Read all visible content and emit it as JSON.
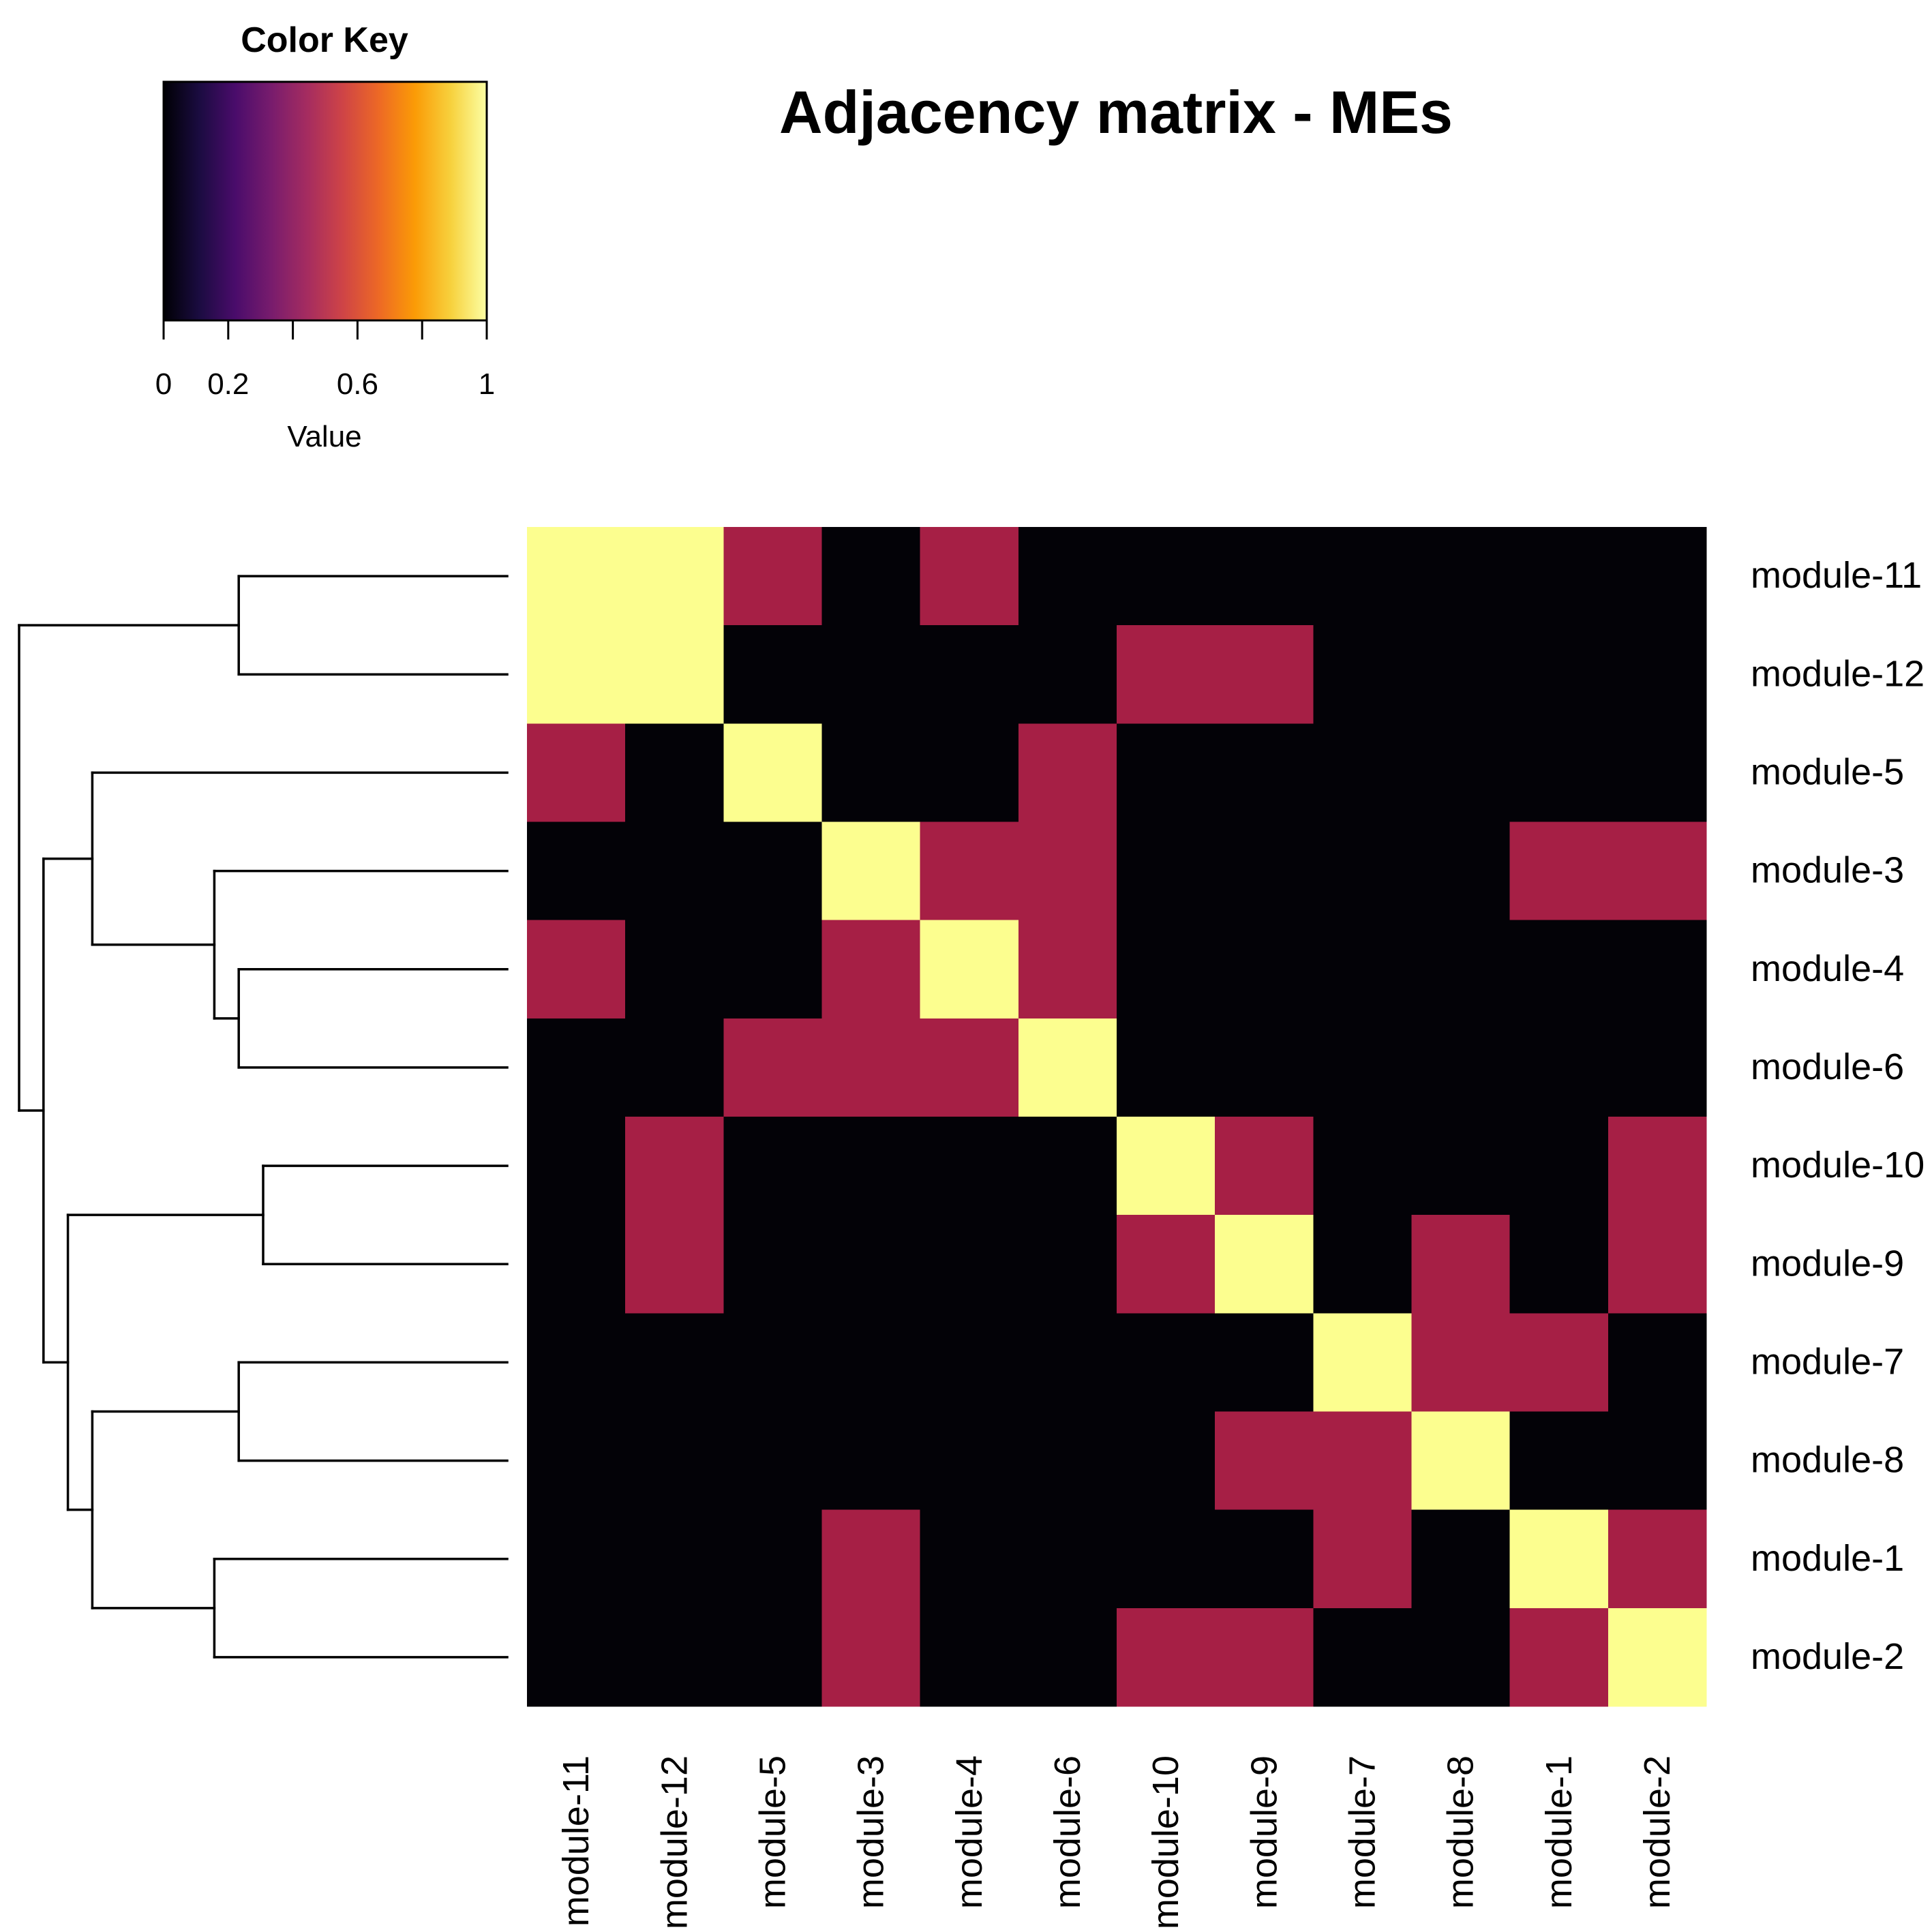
{
  "chart_data": {
    "type": "heatmap",
    "title": "Adjacency matrix - MEs",
    "row_labels": [
      "module-11",
      "module-12",
      "module-5",
      "module-3",
      "module-4",
      "module-6",
      "module-10",
      "module-9",
      "module-7",
      "module-8",
      "module-1",
      "module-2"
    ],
    "col_labels": [
      "module-11",
      "module-12",
      "module-5",
      "module-3",
      "module-4",
      "module-6",
      "module-10",
      "module-9",
      "module-7",
      "module-8",
      "module-1",
      "module-2"
    ],
    "values": [
      [
        1,
        1,
        0.5,
        0,
        0.5,
        0,
        0,
        0,
        0,
        0,
        0,
        0
      ],
      [
        1,
        1,
        0,
        0,
        0,
        0,
        0.5,
        0.5,
        0,
        0,
        0,
        0
      ],
      [
        0.5,
        0,
        1,
        0,
        0,
        0.5,
        0,
        0,
        0,
        0,
        0,
        0
      ],
      [
        0,
        0,
        0,
        1,
        0.5,
        0.5,
        0,
        0,
        0,
        0,
        0.5,
        0.5
      ],
      [
        0.5,
        0,
        0,
        0.5,
        1,
        0.5,
        0,
        0,
        0,
        0,
        0,
        0
      ],
      [
        0,
        0,
        0.5,
        0.5,
        0.5,
        1,
        0,
        0,
        0,
        0,
        0,
        0
      ],
      [
        0,
        0.5,
        0,
        0,
        0,
        0,
        1,
        0.5,
        0,
        0,
        0,
        0.5
      ],
      [
        0,
        0.5,
        0,
        0,
        0,
        0,
        0.5,
        1,
        0,
        0.5,
        0,
        0.5
      ],
      [
        0,
        0,
        0,
        0,
        0,
        0,
        0,
        0,
        1,
        0.5,
        0.5,
        0
      ],
      [
        0,
        0,
        0,
        0,
        0,
        0,
        0,
        0.5,
        0.5,
        1,
        0,
        0
      ],
      [
        0,
        0,
        0,
        0.5,
        0,
        0,
        0,
        0,
        0.5,
        0,
        1,
        0.5
      ],
      [
        0,
        0,
        0,
        0.5,
        0,
        0,
        0.5,
        0.5,
        0,
        0,
        0.5,
        1
      ]
    ],
    "color_key": {
      "title": "Color Key",
      "xlabel": "Value",
      "range": [
        0,
        1
      ],
      "tick_values": [
        0,
        0.2,
        0.4,
        0.6,
        0.8,
        1
      ],
      "tick_labels": [
        "0",
        "0.2",
        "",
        "0.6",
        "",
        "1"
      ],
      "colors": [
        "#000004",
        "#1b0c41",
        "#4a0c6b",
        "#781c6d",
        "#a52c60",
        "#cf4446",
        "#ed6925",
        "#fb9b06",
        "#f7d13d",
        "#fcffa4"
      ]
    },
    "dendrogram": {
      "leaves": [
        "module-11",
        "module-12",
        "module-5",
        "module-3",
        "module-4",
        "module-6",
        "module-10",
        "module-9",
        "module-7",
        "module-8",
        "module-1",
        "module-2"
      ],
      "merges": [
        {
          "a": "L0",
          "b": "L1",
          "height": 0.55
        },
        {
          "a": "L4",
          "b": "L5",
          "height": 0.55
        },
        {
          "a": "L3",
          "b": "N1",
          "height": 0.6
        },
        {
          "a": "L2",
          "b": "N2",
          "height": 0.85
        },
        {
          "a": "L6",
          "b": "L7",
          "height": 0.5
        },
        {
          "a": "L8",
          "b": "L9",
          "height": 0.55
        },
        {
          "a": "L10",
          "b": "L11",
          "height": 0.6
        },
        {
          "a": "N5",
          "b": "N6",
          "height": 0.85
        },
        {
          "a": "N4",
          "b": "N7",
          "height": 0.9
        },
        {
          "a": "N3",
          "b": "N8",
          "height": 0.95
        },
        {
          "a": "N0",
          "b": "N9",
          "height": 1.0
        }
      ]
    }
  }
}
